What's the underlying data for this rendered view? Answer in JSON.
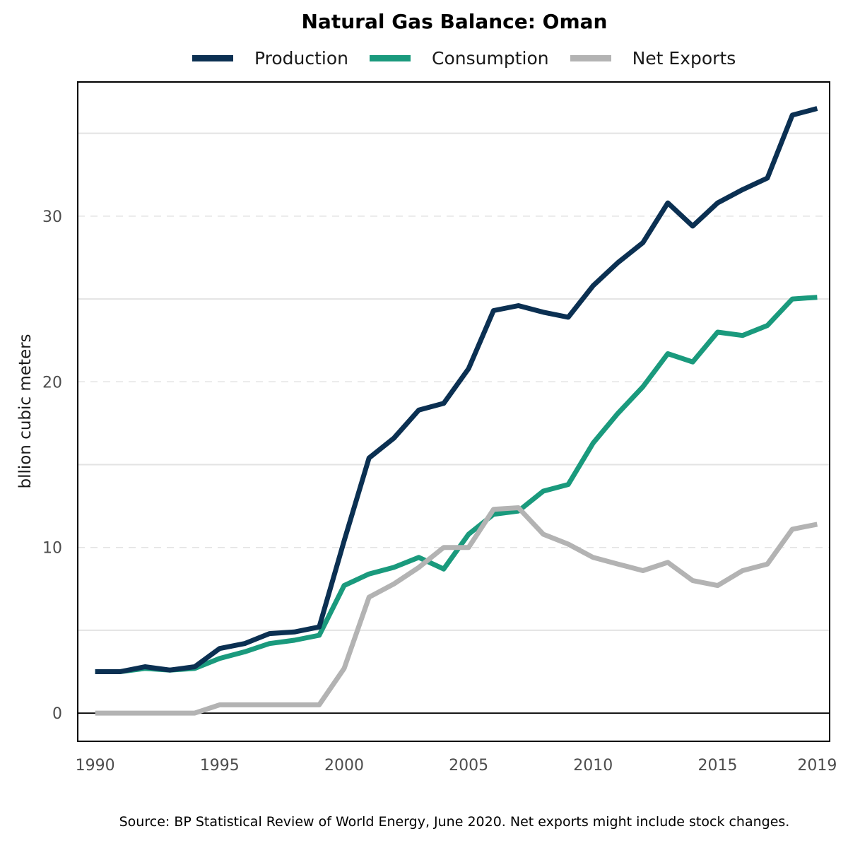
{
  "chart_data": {
    "type": "line",
    "title": "Natural Gas Balance: Oman",
    "xlabel": "",
    "ylabel": "bllion cubic meters",
    "xlim": [
      1989.3,
      2019.5
    ],
    "ylim": [
      -1.7,
      38.1
    ],
    "x_ticks": [
      1990,
      1995,
      2000,
      2005,
      2010,
      2015,
      2019
    ],
    "y_ticks": [
      0,
      10,
      20,
      30
    ],
    "y_grid_solid": [
      5,
      15,
      25,
      35
    ],
    "y_grid_dashed": [
      10,
      20,
      30
    ],
    "zero_line": 0,
    "legend_position": "top",
    "x": [
      1990,
      1991,
      1992,
      1993,
      1994,
      1995,
      1996,
      1997,
      1998,
      1999,
      2000,
      2001,
      2002,
      2003,
      2004,
      2005,
      2006,
      2007,
      2008,
      2009,
      2010,
      2011,
      2012,
      2013,
      2014,
      2015,
      2016,
      2017,
      2018,
      2019
    ],
    "series": [
      {
        "name": "Production",
        "color": "#0b3052",
        "values": [
          2.5,
          2.5,
          2.8,
          2.6,
          2.8,
          3.9,
          4.2,
          4.8,
          4.9,
          5.2,
          10.4,
          15.4,
          16.6,
          18.3,
          18.7,
          20.8,
          24.3,
          24.6,
          24.2,
          23.9,
          25.8,
          27.2,
          28.4,
          30.8,
          29.4,
          30.8,
          31.6,
          32.3,
          36.1,
          36.5
        ]
      },
      {
        "name": "Consumption",
        "color": "#1a9a7d",
        "values": [
          2.5,
          2.5,
          2.7,
          2.6,
          2.7,
          3.3,
          3.7,
          4.2,
          4.4,
          4.7,
          7.7,
          8.4,
          8.8,
          9.4,
          8.7,
          10.8,
          12.0,
          12.2,
          13.4,
          13.8,
          16.3,
          18.1,
          19.7,
          21.7,
          21.2,
          23.0,
          22.8,
          23.4,
          25.0,
          25.1
        ]
      },
      {
        "name": "Net Exports",
        "color": "#b3b3b3",
        "values": [
          0.0,
          0.0,
          0.0,
          0.0,
          0.0,
          0.5,
          0.5,
          0.5,
          0.5,
          0.5,
          2.7,
          7.0,
          7.8,
          8.8,
          10.0,
          10.0,
          12.3,
          12.4,
          10.8,
          10.2,
          9.4,
          9.0,
          8.6,
          9.1,
          8.0,
          7.7,
          8.6,
          9.0,
          11.1,
          11.4
        ]
      }
    ]
  },
  "source": "Source: BP Statistical Review of World Energy, June 2020. Net exports might include stock changes."
}
